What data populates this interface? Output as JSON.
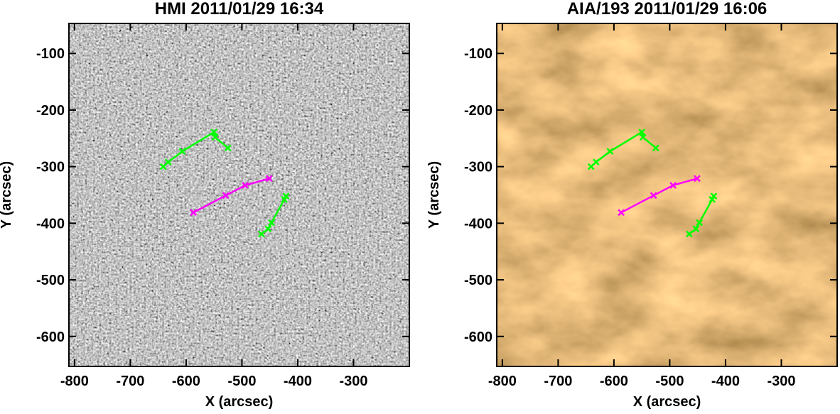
{
  "chart_data": [
    {
      "type": "line",
      "title": "HMI 2011/01/29 16:34",
      "background": "hmi",
      "xlabel": "X (arcsec)",
      "ylabel": "Y (arcsec)",
      "xlim": [
        -810,
        -200
      ],
      "ylim": [
        -653,
        -47
      ],
      "xticks": [
        -800,
        -700,
        -600,
        -500,
        -400,
        -300
      ],
      "yticks": [
        -100,
        -200,
        -300,
        -400,
        -500,
        -600
      ],
      "series": [
        {
          "color": "#00ff00",
          "x": [
            -641,
            -632,
            -607,
            -550,
            -548,
            -525
          ],
          "values": [
            -300,
            -292,
            -273,
            -239,
            -248,
            -267
          ]
        },
        {
          "color": "#ff00ff",
          "x": [
            -587,
            -529,
            -494,
            -451
          ],
          "values": [
            -381,
            -351,
            -333,
            -321
          ]
        },
        {
          "color": "#00ff00",
          "x": [
            -465,
            -453,
            -447,
            -424,
            -421
          ],
          "values": [
            -419,
            -410,
            -399,
            -358,
            -352
          ]
        }
      ]
    },
    {
      "type": "line",
      "title": "AIA/193 2011/01/29 16:06",
      "background": "aia",
      "xlabel": "X (arcsec)",
      "ylabel": "Y (arcsec)",
      "xlim": [
        -810,
        -200
      ],
      "ylim": [
        -653,
        -47
      ],
      "xticks": [
        -800,
        -700,
        -600,
        -500,
        -400,
        -300
      ],
      "yticks": [
        -100,
        -200,
        -300,
        -400,
        -500,
        -600
      ],
      "series": [
        {
          "color": "#00ff00",
          "x": [
            -641,
            -632,
            -607,
            -550,
            -548,
            -525
          ],
          "values": [
            -300,
            -292,
            -273,
            -239,
            -248,
            -267
          ]
        },
        {
          "color": "#ff00ff",
          "x": [
            -587,
            -529,
            -494,
            -451
          ],
          "values": [
            -381,
            -351,
            -333,
            -321
          ]
        },
        {
          "color": "#00ff00",
          "x": [
            -465,
            -453,
            -447,
            -424,
            -421
          ],
          "values": [
            -419,
            -410,
            -399,
            -358,
            -352
          ]
        }
      ]
    }
  ]
}
